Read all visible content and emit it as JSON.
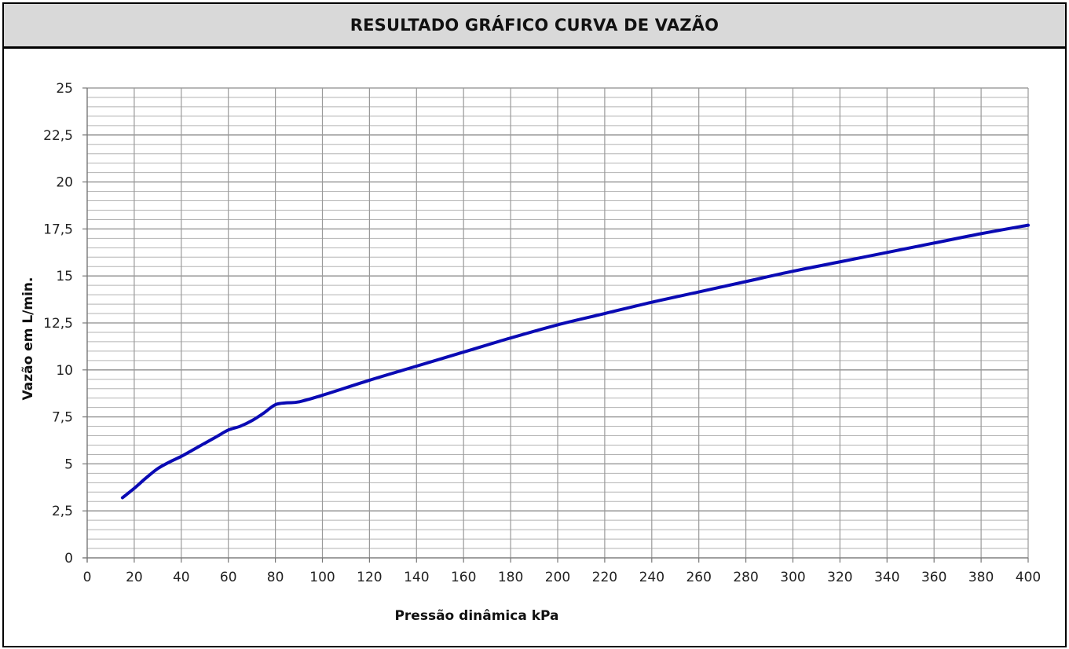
{
  "header": {
    "title": "RESULTADO GRÁFICO CURVA DE VAZÃO"
  },
  "colors": {
    "series": "#0a0ab4",
    "grid": "#9a9a9a",
    "header_bg": "#d9d9d9"
  },
  "chart_data": {
    "type": "line",
    "title": "RESULTADO GRÁFICO CURVA DE VAZÃO",
    "xlabel": "Pressão dinâmica kPa",
    "ylabel": "Vazão em L/min.",
    "xlim": [
      0,
      400
    ],
    "ylim": [
      0,
      25
    ],
    "x_ticks": [
      0,
      20,
      40,
      60,
      80,
      100,
      120,
      140,
      160,
      180,
      200,
      220,
      240,
      260,
      280,
      300,
      320,
      340,
      360,
      380,
      400
    ],
    "x_tick_labels": [
      "0",
      "20",
      "40",
      "60",
      "80",
      "100",
      "120",
      "140",
      "160",
      "180",
      "200",
      "220",
      "240",
      "260",
      "280",
      "300",
      "320",
      "340",
      "360",
      "380",
      "400"
    ],
    "y_ticks": [
      0,
      2.5,
      5,
      7.5,
      10,
      12.5,
      15,
      17.5,
      20,
      22.5,
      25
    ],
    "y_tick_labels": [
      "0",
      "2,5",
      "5",
      "7,5",
      "10",
      "12,5",
      "15",
      "17,5",
      "20",
      "22,5",
      "25"
    ],
    "grid": true,
    "legend": "none",
    "series": [
      {
        "x": [
          15,
          20,
          25,
          30,
          35,
          40,
          45,
          50,
          55,
          60,
          65,
          70,
          75,
          80,
          85,
          90,
          100,
          120,
          140,
          160,
          180,
          200,
          220,
          240,
          260,
          280,
          300,
          320,
          340,
          360,
          380,
          400
        ],
        "y": [
          3.2,
          3.7,
          4.25,
          4.75,
          5.1,
          5.4,
          5.75,
          6.1,
          6.45,
          6.8,
          7.0,
          7.3,
          7.7,
          8.15,
          8.25,
          8.3,
          8.65,
          9.45,
          10.2,
          10.95,
          11.7,
          12.4,
          13.0,
          13.6,
          14.15,
          14.7,
          15.25,
          15.75,
          16.25,
          16.75,
          17.25,
          17.7
        ]
      }
    ]
  }
}
